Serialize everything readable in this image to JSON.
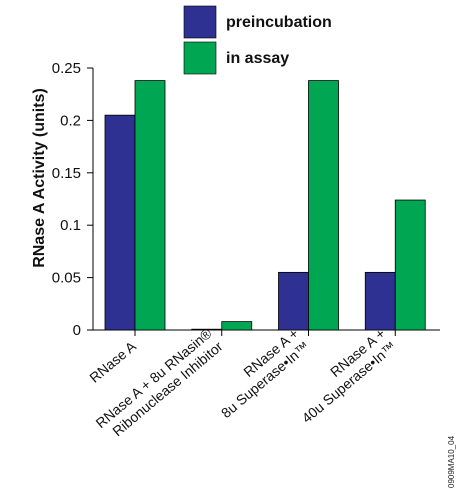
{
  "chart_data": {
    "type": "bar",
    "title": "",
    "xlabel": "",
    "ylabel": "RNase A Activity (units)",
    "ylim": [
      0,
      0.25
    ],
    "yticks": [
      "0",
      "0.05",
      "0.1",
      "0.15",
      "0.2",
      "0.25"
    ],
    "grid": false,
    "legend_position": "top-center",
    "categories": [
      [
        "RNase A"
      ],
      [
        "RNase A + 8u RNasin®",
        "Ribonuclease Inhibitor"
      ],
      [
        "RNase A +",
        "8u Superase•In™"
      ],
      [
        "RNase A +",
        "40u Superase•In™"
      ]
    ],
    "series": [
      {
        "name": "preincubation",
        "color": "#2e3192",
        "values": [
          0.205,
          0.0005,
          0.055,
          0.055
        ]
      },
      {
        "name": "in assay",
        "color": "#00a651",
        "values": [
          0.238,
          0.008,
          0.238,
          0.124
        ]
      }
    ],
    "figure_code": "0909MA10_04"
  }
}
